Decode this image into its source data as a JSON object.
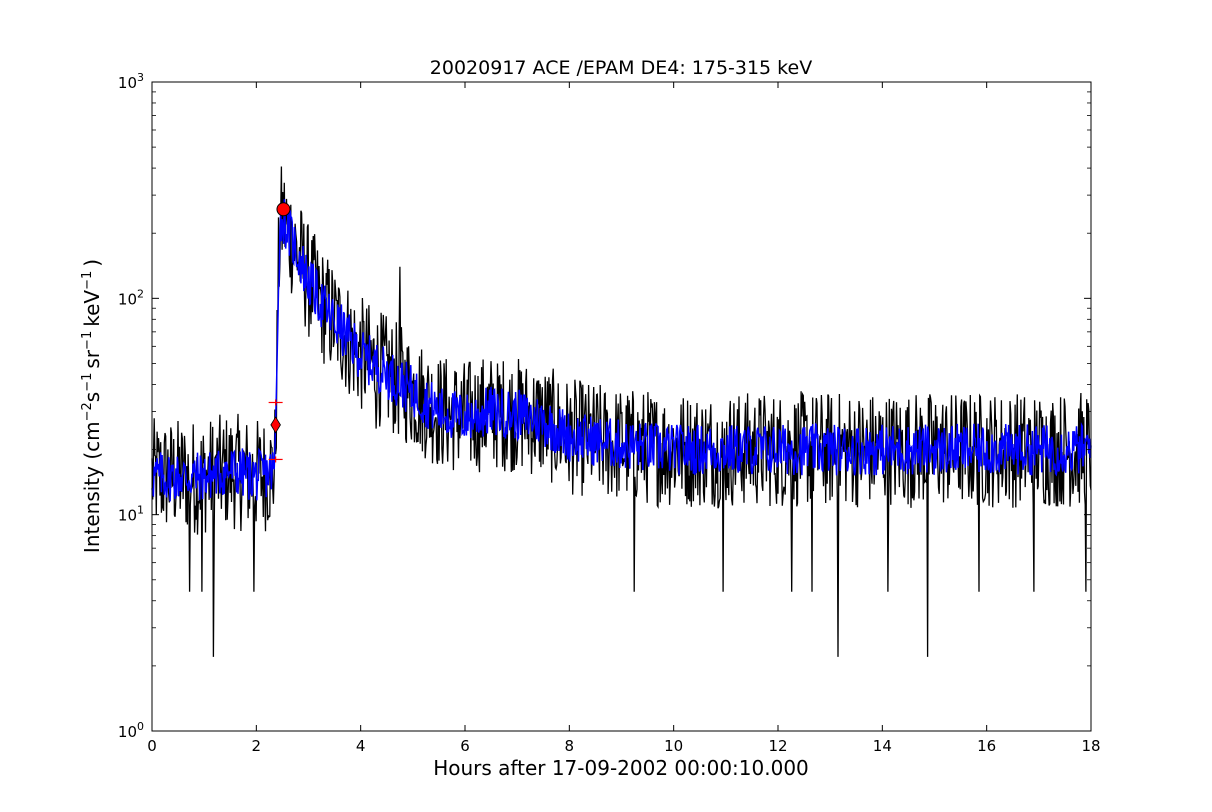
{
  "chart_data": {
    "type": "line",
    "title": "20020917 ACE /EPAM DE4: 175-315 keV",
    "xlabel": "Hours after 17-09-2002 00:00:10.000",
    "ylabel": {
      "prefix": "Intensity (cm",
      "exp1": "−2",
      "mid1": "s",
      "exp2": "−1",
      "mid2": "sr",
      "exp3": "−1",
      "mid3": "keV",
      "exp4": "−1",
      "suffix": ")"
    },
    "xlim": [
      0,
      18
    ],
    "ylim": [
      1,
      1000
    ],
    "yscale": "log",
    "grid": false,
    "x_ticks": [
      0,
      2,
      4,
      6,
      8,
      10,
      12,
      14,
      16,
      18
    ],
    "x_tick_labels": [
      "0",
      "2",
      "4",
      "6",
      "8",
      "10",
      "12",
      "14",
      "16",
      "18"
    ],
    "y_ticks": [
      1,
      10,
      100,
      1000
    ],
    "y_tick_labels": [
      {
        "base": "10",
        "exp": "0"
      },
      {
        "base": "10",
        "exp": "1"
      },
      {
        "base": "10",
        "exp": "2"
      },
      {
        "base": "10",
        "exp": "3"
      }
    ],
    "series": [
      {
        "color": "#000000",
        "kind": "raw",
        "profile_x": [
          0,
          0.5,
          1.0,
          1.5,
          2.0,
          2.35,
          2.38,
          2.42,
          2.46,
          2.52,
          2.6,
          2.8,
          3.0,
          3.3,
          3.7,
          4.0,
          4.5,
          5.0,
          5.5,
          6.0,
          6.5,
          7.0,
          7.5,
          8.0,
          9.0,
          10,
          11,
          12,
          13,
          14,
          15,
          16,
          17,
          18
        ],
        "profile_y": [
          15,
          15,
          15,
          16,
          15,
          16,
          30,
          120,
          220,
          235,
          210,
          160,
          120,
          90,
          68,
          55,
          45,
          37,
          30,
          28,
          30,
          29,
          27,
          23,
          21,
          20,
          20,
          20,
          20,
          20,
          20,
          20,
          20,
          20
        ],
        "spikes": [
          {
            "x": 1.18,
            "y": 2.2
          },
          {
            "x": 0.72,
            "y": 4.4
          },
          {
            "x": 0.95,
            "y": 4.4
          },
          {
            "x": 1.95,
            "y": 4.4
          },
          {
            "x": 9.24,
            "y": 4.4
          },
          {
            "x": 10.95,
            "y": 4.4
          },
          {
            "x": 12.26,
            "y": 4.4
          },
          {
            "x": 12.65,
            "y": 4.4
          },
          {
            "x": 13.15,
            "y": 2.2
          },
          {
            "x": 14.1,
            "y": 4.4
          },
          {
            "x": 14.87,
            "y": 2.2
          },
          {
            "x": 15.85,
            "y": 4.4
          },
          {
            "x": 16.9,
            "y": 4.4
          },
          {
            "x": 17.9,
            "y": 4.4
          },
          {
            "x": 4.75,
            "y": 140
          },
          {
            "x": 6.62,
            "y": 50
          },
          {
            "x": 3.1,
            "y": 150
          },
          {
            "x": 4.3,
            "y": 25
          }
        ]
      },
      {
        "color": "#0000ff",
        "kind": "smoothed",
        "profile_x": [
          0,
          0.5,
          1.0,
          1.5,
          2.0,
          2.35,
          2.38,
          2.42,
          2.46,
          2.52,
          2.6,
          2.8,
          3.0,
          3.3,
          3.7,
          4.0,
          4.5,
          5.0,
          5.5,
          6.0,
          6.5,
          7.0,
          7.5,
          8.0,
          9.0,
          10,
          11,
          12,
          13,
          14,
          15,
          16,
          17,
          18
        ],
        "profile_y": [
          15,
          15,
          15,
          16,
          15,
          16,
          30,
          120,
          220,
          235,
          210,
          160,
          120,
          90,
          68,
          55,
          45,
          37,
          30,
          28,
          30,
          29,
          27,
          23,
          21,
          20,
          20,
          20,
          20,
          20,
          20,
          20,
          20,
          20
        ]
      }
    ],
    "markers": [
      {
        "shape": "circle",
        "color": "#ff0000",
        "x": 2.52,
        "y": 258
      },
      {
        "shape": "diamond",
        "color": "#ff0000",
        "x": 2.37,
        "y": 26
      },
      {
        "shape": "plus",
        "color": "#ff0000",
        "x": 2.37,
        "y": 33
      },
      {
        "shape": "plus",
        "color": "#ff0000",
        "x": 2.37,
        "y": 18
      }
    ]
  }
}
